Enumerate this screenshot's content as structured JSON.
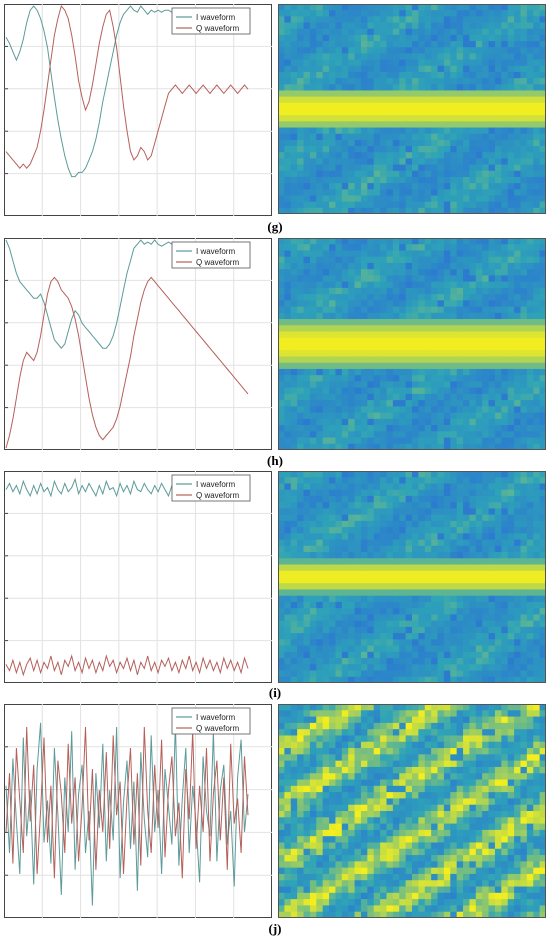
{
  "figure": {
    "panels": [
      {
        "label": "(g)",
        "legend": [
          "I waveform",
          "Q waveform"
        ]
      },
      {
        "label": "(h)",
        "legend": [
          "I waveform",
          "Q waveform"
        ]
      },
      {
        "label": "(i)",
        "legend": [
          "I waveform",
          "Q waveform"
        ]
      },
      {
        "label": "(j)",
        "legend": [
          "I waveform",
          "Q waveform"
        ]
      }
    ]
  },
  "colors": {
    "i_series": "#5d9a9a",
    "q_series": "#b5605a",
    "grid": "#e2e2e2",
    "spectrum_low": "#2b6fd6",
    "spectrum_mid": "#2ea3b8",
    "spectrum_high": "#f4ee1e"
  },
  "chart_data": [
    {
      "type": "line",
      "panel": "(g)",
      "legend_position": "top-right",
      "grid": true,
      "x": [
        0,
        1,
        2,
        3,
        4,
        5,
        6,
        7,
        8,
        9,
        10,
        11,
        12,
        13,
        14,
        15,
        16,
        17,
        18,
        19,
        20,
        21,
        22,
        23,
        24,
        25,
        26,
        27,
        28,
        29,
        30,
        31,
        32,
        33,
        34,
        35,
        36,
        37,
        38,
        39,
        40,
        41,
        42,
        43,
        44,
        45,
        46,
        47,
        48,
        49,
        50,
        51,
        52,
        53,
        54,
        55,
        56,
        57,
        58,
        59,
        60,
        61,
        62,
        63,
        64,
        65,
        66,
        67,
        68,
        69,
        70
      ],
      "series": [
        {
          "name": "I waveform",
          "values": [
            0.85,
            0.82,
            0.78,
            0.74,
            0.78,
            0.84,
            0.92,
            0.98,
            1.0,
            0.98,
            0.94,
            0.88,
            0.8,
            0.68,
            0.56,
            0.45,
            0.36,
            0.28,
            0.22,
            0.18,
            0.18,
            0.2,
            0.2,
            0.22,
            0.26,
            0.3,
            0.36,
            0.44,
            0.54,
            0.62,
            0.7,
            0.78,
            0.86,
            0.92,
            0.96,
            0.98,
            1.0,
            0.98,
            0.97,
            1.0,
            0.98,
            0.96,
            0.98,
            0.97,
            0.98,
            0.97,
            0.98,
            0.98,
            0.97,
            0.98,
            0.98,
            0.97,
            0.98,
            0.97,
            0.98,
            0.98,
            0.97,
            0.98,
            0.98,
            0.97,
            0.98,
            0.97,
            0.98,
            0.98,
            0.97,
            0.98,
            0.97,
            0.98,
            0.98,
            0.97,
            0.98
          ]
        },
        {
          "name": "Q waveform",
          "values": [
            0.3,
            0.28,
            0.26,
            0.24,
            0.22,
            0.24,
            0.22,
            0.24,
            0.28,
            0.32,
            0.4,
            0.5,
            0.62,
            0.74,
            0.86,
            0.94,
            1.0,
            0.98,
            0.94,
            0.86,
            0.76,
            0.64,
            0.56,
            0.5,
            0.54,
            0.62,
            0.72,
            0.82,
            0.9,
            0.96,
            0.98,
            0.9,
            0.8,
            0.66,
            0.52,
            0.4,
            0.3,
            0.26,
            0.28,
            0.32,
            0.3,
            0.26,
            0.28,
            0.34,
            0.4,
            0.46,
            0.52,
            0.58,
            0.6,
            0.62,
            0.6,
            0.58,
            0.6,
            0.62,
            0.6,
            0.58,
            0.6,
            0.62,
            0.6,
            0.58,
            0.6,
            0.62,
            0.6,
            0.58,
            0.6,
            0.62,
            0.6,
            0.58,
            0.6,
            0.62,
            0.6
          ]
        }
      ]
    },
    {
      "type": "line",
      "panel": "(h)",
      "legend_position": "top-right",
      "grid": true,
      "x": [
        0,
        1,
        2,
        3,
        4,
        5,
        6,
        7,
        8,
        9,
        10,
        11,
        12,
        13,
        14,
        15,
        16,
        17,
        18,
        19,
        20,
        21,
        22,
        23,
        24,
        25,
        26,
        27,
        28,
        29,
        30,
        31,
        32,
        33,
        34,
        35,
        36,
        37,
        38,
        39,
        40,
        41,
        42,
        43,
        44,
        45,
        46,
        47,
        48,
        49,
        50,
        51,
        52,
        53,
        54,
        55,
        56,
        57,
        58,
        59,
        60,
        61,
        62,
        63,
        64,
        65,
        66,
        67,
        68,
        69,
        70
      ],
      "series": [
        {
          "name": "I waveform",
          "values": [
            1.0,
            0.96,
            0.9,
            0.84,
            0.8,
            0.78,
            0.76,
            0.74,
            0.72,
            0.72,
            0.74,
            0.7,
            0.64,
            0.58,
            0.52,
            0.5,
            0.48,
            0.5,
            0.56,
            0.62,
            0.66,
            0.64,
            0.6,
            0.58,
            0.56,
            0.54,
            0.52,
            0.5,
            0.48,
            0.48,
            0.5,
            0.54,
            0.6,
            0.68,
            0.76,
            0.84,
            0.9,
            0.96,
            0.98,
            1.0,
            0.98,
            0.99,
            0.98,
            1.0,
            0.98,
            0.97,
            0.98,
            0.99,
            0.98,
            0.97,
            0.98,
            0.99,
            0.98,
            0.97,
            0.98,
            0.99,
            0.98,
            0.97,
            0.98,
            0.99,
            0.98,
            0.97,
            0.98,
            0.99,
            0.98,
            0.97,
            0.98,
            0.99,
            0.98,
            0.97,
            0.98
          ]
        },
        {
          "name": "Q waveform",
          "values": [
            0.0,
            0.06,
            0.14,
            0.24,
            0.34,
            0.42,
            0.46,
            0.44,
            0.42,
            0.46,
            0.54,
            0.64,
            0.74,
            0.8,
            0.82,
            0.8,
            0.76,
            0.74,
            0.72,
            0.68,
            0.62,
            0.54,
            0.44,
            0.34,
            0.24,
            0.16,
            0.1,
            0.06,
            0.04,
            0.06,
            0.08,
            0.1,
            0.14,
            0.2,
            0.28,
            0.36,
            0.44,
            0.54,
            0.62,
            0.7,
            0.76,
            0.8,
            0.82,
            0.8,
            0.78,
            0.76,
            0.74,
            0.72,
            0.7,
            0.68,
            0.66,
            0.64,
            0.62,
            0.6,
            0.58,
            0.56,
            0.54,
            0.52,
            0.5,
            0.48,
            0.46,
            0.44,
            0.42,
            0.4,
            0.38,
            0.36,
            0.34,
            0.32,
            0.3,
            0.28,
            0.26
          ]
        }
      ]
    },
    {
      "type": "line",
      "panel": "(i)",
      "legend_position": "top-right",
      "grid": true,
      "x": [
        0,
        1,
        2,
        3,
        4,
        5,
        6,
        7,
        8,
        9,
        10,
        11,
        12,
        13,
        14,
        15,
        16,
        17,
        18,
        19,
        20,
        21,
        22,
        23,
        24,
        25,
        26,
        27,
        28,
        29,
        30,
        31,
        32,
        33,
        34,
        35,
        36,
        37,
        38,
        39,
        40,
        41,
        42,
        43,
        44,
        45,
        46,
        47,
        48,
        49,
        50,
        51,
        52,
        53,
        54,
        55,
        56,
        57,
        58,
        59,
        60,
        61,
        62,
        63,
        64,
        65,
        66,
        67,
        68,
        69,
        70
      ],
      "series": [
        {
          "name": "I waveform",
          "values": [
            0.92,
            0.95,
            0.91,
            0.94,
            0.9,
            0.96,
            0.92,
            0.89,
            0.94,
            0.9,
            0.95,
            0.91,
            0.93,
            0.89,
            0.96,
            0.92,
            0.9,
            0.95,
            0.91,
            0.93,
            0.97,
            0.9,
            0.94,
            0.91,
            0.95,
            0.92,
            0.89,
            0.94,
            0.9,
            0.96,
            0.92,
            0.93,
            0.89,
            0.95,
            0.91,
            0.94,
            0.9,
            0.96,
            0.92,
            0.91,
            0.95,
            0.92,
            0.9,
            0.94,
            0.91,
            0.95,
            0.92,
            0.89,
            0.94,
            0.9,
            0.92,
            0.95,
            0.91,
            0.93,
            0.9,
            0.94,
            0.92,
            0.89,
            0.95,
            0.91,
            0.93,
            0.9,
            0.94,
            0.92,
            0.89,
            0.95,
            0.91,
            0.93,
            0.9,
            0.94,
            0.92
          ]
        },
        {
          "name": "Q waveform",
          "values": [
            0.08,
            0.05,
            0.1,
            0.04,
            0.09,
            0.03,
            0.08,
            0.11,
            0.05,
            0.1,
            0.04,
            0.09,
            0.06,
            0.12,
            0.05,
            0.09,
            0.03,
            0.1,
            0.07,
            0.12,
            0.05,
            0.09,
            0.04,
            0.11,
            0.06,
            0.1,
            0.04,
            0.09,
            0.05,
            0.12,
            0.07,
            0.1,
            0.04,
            0.09,
            0.06,
            0.11,
            0.05,
            0.1,
            0.03,
            0.09,
            0.06,
            0.12,
            0.05,
            0.09,
            0.04,
            0.1,
            0.07,
            0.11,
            0.05,
            0.09,
            0.04,
            0.1,
            0.06,
            0.12,
            0.05,
            0.09,
            0.04,
            0.11,
            0.06,
            0.1,
            0.05,
            0.09,
            0.04,
            0.11,
            0.06,
            0.1,
            0.05,
            0.09,
            0.04,
            0.11,
            0.06
          ]
        }
      ]
    },
    {
      "type": "line",
      "panel": "(j)",
      "legend_position": "top-right",
      "grid": true,
      "x": [
        0,
        1,
        2,
        3,
        4,
        5,
        6,
        7,
        8,
        9,
        10,
        11,
        12,
        13,
        14,
        15,
        16,
        17,
        18,
        19,
        20,
        21,
        22,
        23,
        24,
        25,
        26,
        27,
        28,
        29,
        30,
        31,
        32,
        33,
        34,
        35,
        36,
        37,
        38,
        39,
        40,
        41,
        42,
        43,
        44,
        45,
        46,
        47,
        48,
        49,
        50,
        51,
        52,
        53,
        54,
        55,
        56,
        57,
        58,
        59,
        60,
        61,
        62,
        63,
        64,
        65,
        66,
        67,
        68,
        69,
        70
      ],
      "series": [
        {
          "name": "I waveform",
          "values": [
            0.62,
            0.3,
            0.75,
            0.45,
            0.2,
            0.85,
            0.38,
            0.6,
            0.15,
            0.7,
            0.92,
            0.35,
            0.55,
            0.25,
            0.8,
            0.48,
            0.1,
            0.66,
            0.4,
            0.88,
            0.22,
            0.58,
            0.72,
            0.3,
            0.5,
            0.05,
            0.68,
            0.42,
            0.82,
            0.26,
            0.6,
            0.36,
            0.9,
            0.18,
            0.54,
            0.74,
            0.32,
            0.64,
            0.12,
            0.78,
            0.46,
            0.28,
            0.86,
            0.4,
            0.6,
            0.2,
            0.7,
            0.52,
            0.34,
            0.92,
            0.24,
            0.56,
            0.8,
            0.3,
            0.62,
            0.44,
            0.16,
            0.76,
            0.5,
            0.38,
            0.88,
            0.26,
            0.6,
            0.72,
            0.34,
            0.5,
            0.14,
            0.66,
            0.84,
            0.4,
            0.58
          ]
        },
        {
          "name": "Q waveform",
          "values": [
            0.4,
            0.68,
            0.25,
            0.8,
            0.55,
            0.3,
            0.9,
            0.45,
            0.72,
            0.2,
            0.5,
            0.85,
            0.35,
            0.62,
            0.18,
            0.74,
            0.58,
            0.3,
            0.82,
            0.44,
            0.66,
            0.26,
            0.52,
            0.9,
            0.36,
            0.7,
            0.22,
            0.6,
            0.4,
            0.78,
            0.32,
            0.86,
            0.48,
            0.64,
            0.2,
            0.56,
            0.8,
            0.34,
            0.68,
            0.24,
            0.9,
            0.5,
            0.3,
            0.72,
            0.42,
            0.84,
            0.28,
            0.6,
            0.76,
            0.38,
            0.54,
            0.18,
            0.7,
            0.46,
            0.88,
            0.32,
            0.62,
            0.4,
            0.8,
            0.26,
            0.58,
            0.74,
            0.36,
            0.66,
            0.22,
            0.82,
            0.44,
            0.56,
            0.3,
            0.76,
            0.48
          ]
        }
      ]
    }
  ],
  "spectrograms": [
    {
      "panel": "(g)",
      "band_center": 0.5,
      "band_width": 0.1,
      "background": "mid"
    },
    {
      "panel": "(h)",
      "band_center": 0.5,
      "band_width": 0.12,
      "background": "mid"
    },
    {
      "panel": "(i)",
      "band_center": 0.5,
      "band_width": 0.08,
      "background": "mid"
    },
    {
      "panel": "(j)",
      "band_center": null,
      "band_width": null,
      "background": "high"
    }
  ]
}
